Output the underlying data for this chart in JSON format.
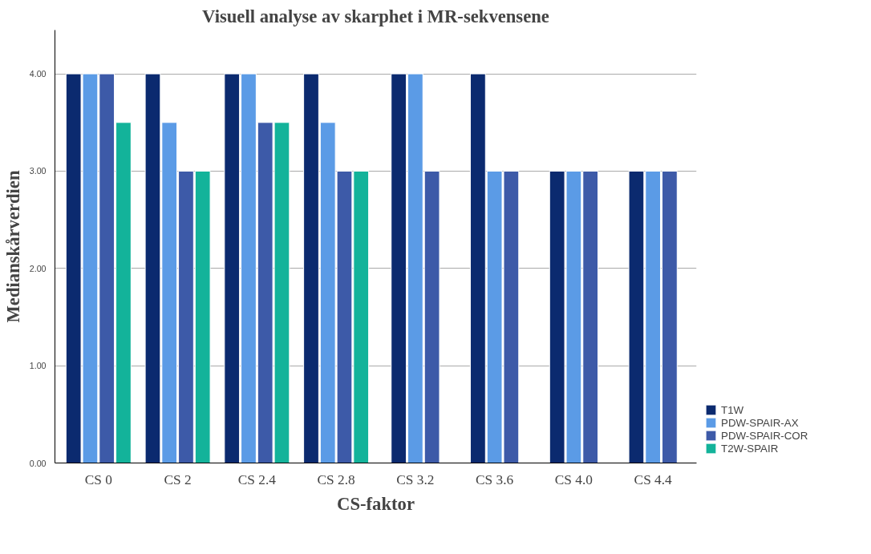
{
  "chart_data": {
    "type": "bar",
    "title": "Visuell analyse av skarphet i MR-sekvensene",
    "xlabel": "CS-faktor",
    "ylabel": "Medianskårverdien",
    "categories": [
      "CS 0",
      "CS 2",
      "CS 2.4",
      "CS 2.8",
      "CS 3.2",
      "CS 3.6",
      "CS 4.0",
      "CS 4.4"
    ],
    "series": [
      {
        "name": "T1W",
        "color": "#0b2a6f",
        "values": [
          4,
          4,
          4,
          4,
          4,
          4,
          3,
          3
        ]
      },
      {
        "name": "PDW-SPAIR-AX",
        "color": "#5b9be6",
        "values": [
          4,
          3.5,
          4,
          3.5,
          4,
          3,
          3,
          3
        ]
      },
      {
        "name": "PDW-SPAIR-COR",
        "color": "#3d5aa8",
        "values": [
          4,
          3,
          3.5,
          3,
          3,
          3,
          3,
          3
        ]
      },
      {
        "name": "T2W-SPAIR",
        "color": "#13b39a",
        "values": [
          3.5,
          3,
          3.5,
          3,
          null,
          null,
          null,
          null
        ]
      }
    ],
    "ylim": [
      0,
      4.45
    ],
    "yticks": [
      {
        "value": 0,
        "label": "0.00"
      },
      {
        "value": 1,
        "label": "1.00"
      },
      {
        "value": 2,
        "label": "2.00"
      },
      {
        "value": 3,
        "label": "3.00"
      },
      {
        "value": 4,
        "label": "4.00"
      }
    ],
    "grid": "y",
    "legend": "right"
  }
}
